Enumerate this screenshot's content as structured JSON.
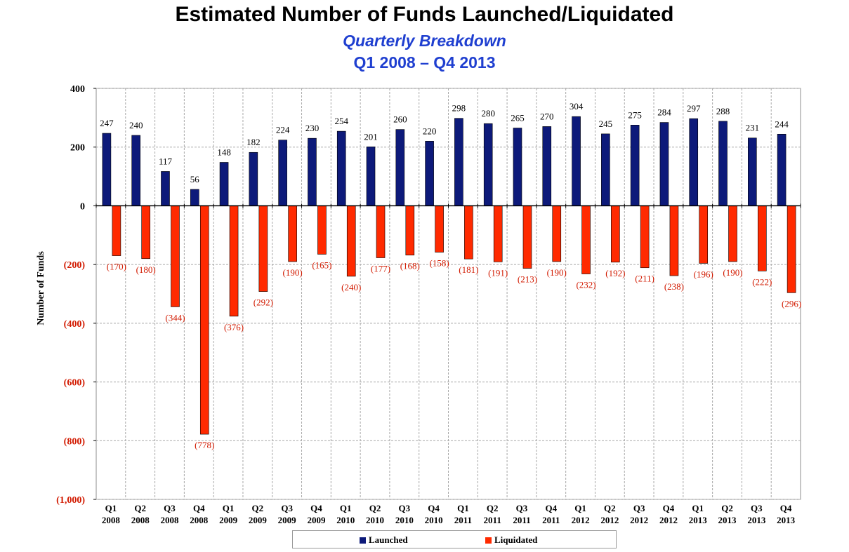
{
  "title": "Estimated Number of Funds Launched/Liquidated",
  "subtitle": "Quarterly Breakdown",
  "subtitle2": "Q1 2008 – Q4 2013",
  "chart_data": {
    "type": "bar",
    "ylabel": "Number of Funds",
    "xlabel": "",
    "ylim": [
      -1000,
      400
    ],
    "yticks": [
      400,
      200,
      0,
      -200,
      -400,
      -600,
      -800,
      -1000
    ],
    "ytick_labels": [
      "400",
      "200",
      "0",
      "(200)",
      "(400)",
      "(600)",
      "(800)",
      "(1,000)"
    ],
    "grid": true,
    "legend_position": "bottom-center",
    "categories": [
      [
        "Q1",
        "2008"
      ],
      [
        "Q2",
        "2008"
      ],
      [
        "Q3",
        "2008"
      ],
      [
        "Q4",
        "2008"
      ],
      [
        "Q1",
        "2009"
      ],
      [
        "Q2",
        "2009"
      ],
      [
        "Q3",
        "2009"
      ],
      [
        "Q4",
        "2009"
      ],
      [
        "Q1",
        "2010"
      ],
      [
        "Q2",
        "2010"
      ],
      [
        "Q3",
        "2010"
      ],
      [
        "Q4",
        "2010"
      ],
      [
        "Q1",
        "2011"
      ],
      [
        "Q2",
        "2011"
      ],
      [
        "Q3",
        "2011"
      ],
      [
        "Q4",
        "2011"
      ],
      [
        "Q1",
        "2012"
      ],
      [
        "Q2",
        "2012"
      ],
      [
        "Q3",
        "2012"
      ],
      [
        "Q4",
        "2012"
      ],
      [
        "Q1",
        "2013"
      ],
      [
        "Q2",
        "2013"
      ],
      [
        "Q3",
        "2013"
      ],
      [
        "Q4",
        "2013"
      ]
    ],
    "series": [
      {
        "name": "Launched",
        "color": "#0d1a7a",
        "label_color": "#000000",
        "values": [
          247,
          240,
          117,
          56,
          148,
          182,
          224,
          230,
          254,
          201,
          260,
          220,
          298,
          280,
          265,
          270,
          304,
          245,
          275,
          284,
          297,
          288,
          231,
          244
        ],
        "labels": [
          "247",
          "240",
          "117",
          "56",
          "148",
          "182",
          "224",
          "230",
          "254",
          "201",
          "260",
          "220",
          "298",
          "280",
          "265",
          "270",
          "304",
          "245",
          "275",
          "284",
          "297",
          "288",
          "231",
          "244"
        ]
      },
      {
        "name": "Liquidated",
        "color": "#ff2a00",
        "label_color": "#d21a00",
        "values": [
          -170,
          -180,
          -344,
          -778,
          -376,
          -292,
          -190,
          -165,
          -240,
          -177,
          -168,
          -158,
          -181,
          -191,
          -213,
          -190,
          -232,
          -192,
          -211,
          -238,
          -196,
          -190,
          -222,
          -296
        ],
        "labels": [
          "(170)",
          "(180)",
          "(344)",
          "(778)",
          "(376)",
          "(292)",
          "(190)",
          "(165)",
          "(240)",
          "(177)",
          "(168)",
          "(158)",
          "(181)",
          "(191)",
          "(213)",
          "(190)",
          "(232)",
          "(192)",
          "(211)",
          "(238)",
          "(196)",
          "(190)",
          "(222)",
          "(296)"
        ]
      }
    ]
  }
}
